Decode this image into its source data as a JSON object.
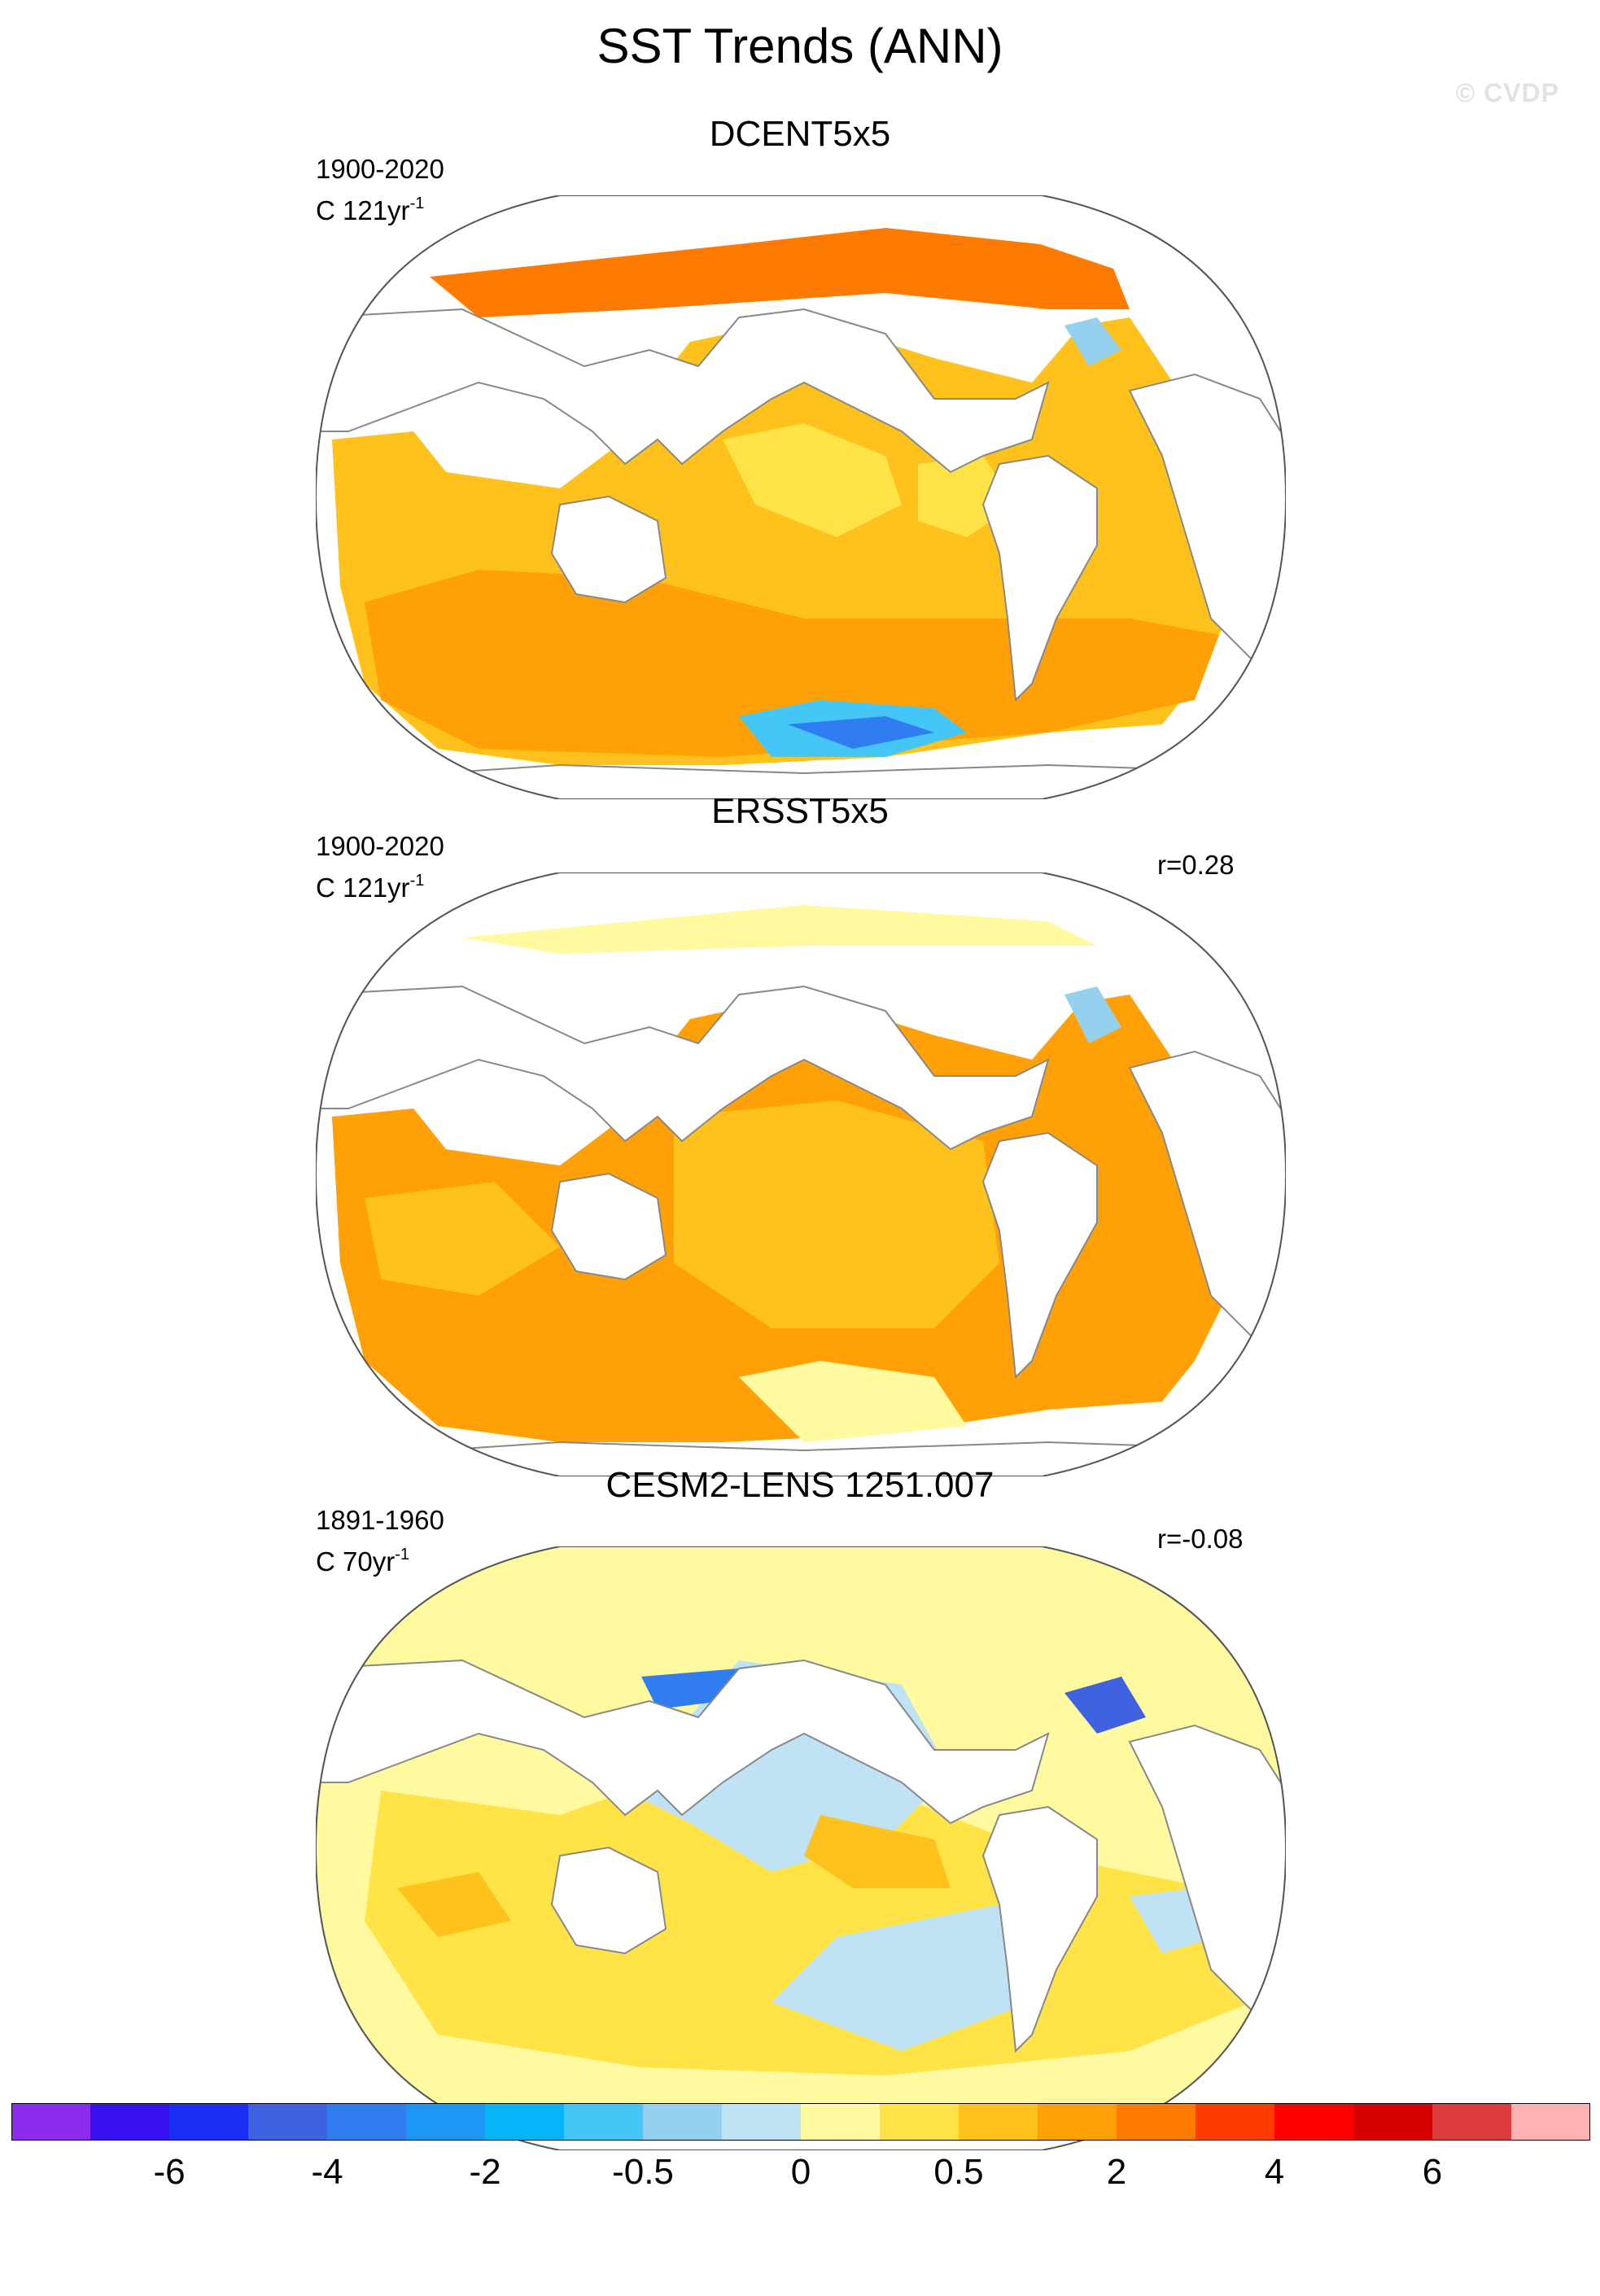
{
  "title": "SST Trends (ANN)",
  "watermark": "© CVDP",
  "panels": [
    {
      "id": "dcent",
      "title": "DCENT5x5",
      "period": "1900-2020",
      "units_prefix": "C 121yr",
      "units_exp": "-1",
      "corr": ""
    },
    {
      "id": "ersst",
      "title": "ERSST5x5",
      "period": "1900-2020",
      "units_prefix": "C 121yr",
      "units_exp": "-1",
      "corr": "r=0.28"
    },
    {
      "id": "cesm",
      "title": "CESM2-LENS 1251.007",
      "period": "1891-1960",
      "units_prefix": "C 70yr",
      "units_exp": "-1",
      "corr": "r=-0.08"
    }
  ],
  "colorbar": {
    "colors": [
      "#8a2bee",
      "#3a12f0",
      "#1a2ef5",
      "#3e62e0",
      "#2f7df0",
      "#1e96f5",
      "#08b4f8",
      "#44c6f7",
      "#95d1ef",
      "#bfe2f4",
      "#fff9a0",
      "#ffe347",
      "#ffc11b",
      "#ffa007",
      "#ff7a00",
      "#ff3b00",
      "#ff0000",
      "#d60000",
      "#dc3b3b",
      "#ffb2b2"
    ],
    "tick_labels": [
      "-6",
      "-4",
      "-2",
      "-0.5",
      "0",
      "0.5",
      "2",
      "4",
      "6"
    ]
  },
  "icons": {
    "land": "continent-outline-shape",
    "ocean": "sst-contour-fill"
  }
}
